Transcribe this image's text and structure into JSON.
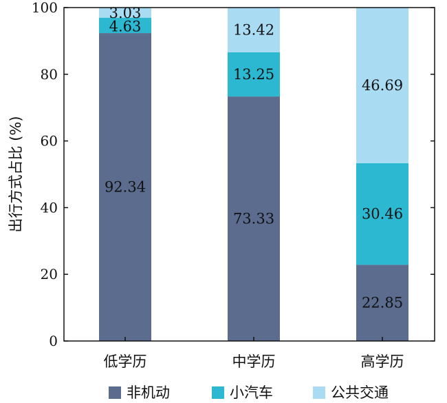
{
  "chart_data": {
    "type": "bar",
    "stacked": true,
    "categories": [
      "低学历",
      "中学历",
      "高学历"
    ],
    "series": [
      {
        "name": "非机动",
        "color": "#5b6c8f",
        "values": [
          92.34,
          73.33,
          22.85
        ]
      },
      {
        "name": "小汽车",
        "color": "#2bb8d0",
        "values": [
          4.63,
          13.25,
          30.46
        ]
      },
      {
        "name": "公共交通",
        "color": "#a9dcf2",
        "values": [
          3.03,
          13.42,
          46.69
        ]
      }
    ],
    "data_labels": [
      [
        "92.34",
        "73.33",
        "22.85"
      ],
      [
        "4.63",
        "13.25",
        "30.46"
      ],
      [
        "3.03",
        "13.42",
        "46.69"
      ]
    ],
    "ylabel": "出行方式占比 (%)",
    "xlabel": "",
    "ylim": [
      0,
      100
    ],
    "yticks": [
      0,
      20,
      40,
      60,
      80,
      100
    ],
    "grid": false,
    "legend_position": "bottom"
  }
}
